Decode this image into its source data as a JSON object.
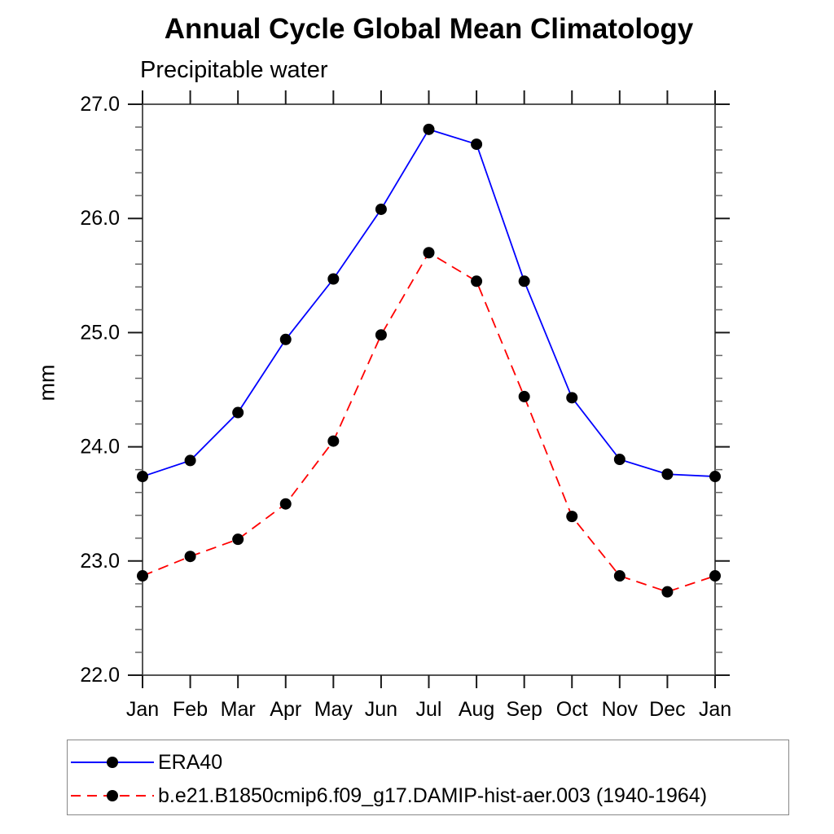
{
  "title": "Annual Cycle Global Mean Climatology",
  "subtitle": "Precipitable water",
  "ylabel": "mm",
  "colors": {
    "series1": "#0000ff",
    "series2": "#ff0000",
    "marker": "#000000",
    "axis": "#555555",
    "major_tick": "#1a1a1a",
    "minor_tick": "#666666",
    "legend_border": "#888888"
  },
  "legend": {
    "position": "bottom",
    "items": [
      {
        "label": "ERA40",
        "color": "#0000ff",
        "line": "solid",
        "marker": "filled-circle"
      },
      {
        "label": "b.e21.B1850cmip6.f09_g17.DAMIP-hist-aer.003 (1940-1964)",
        "color": "#ff0000",
        "line": "dashed",
        "marker": "filled-circle"
      }
    ]
  },
  "chart_data": {
    "type": "line",
    "title": "Annual Cycle Global Mean Climatology",
    "subtitle": "Precipitable water",
    "xlabel": "",
    "ylabel": "mm",
    "categories": [
      "Jan",
      "Feb",
      "Mar",
      "Apr",
      "May",
      "Jun",
      "Jul",
      "Aug",
      "Sep",
      "Oct",
      "Nov",
      "Dec",
      "Jan"
    ],
    "series": [
      {
        "name": "ERA40",
        "color": "#0000ff",
        "line": "solid",
        "marker": "circle",
        "marker_color": "#000000",
        "values": [
          23.74,
          23.88,
          24.3,
          24.94,
          25.47,
          26.08,
          26.78,
          26.65,
          25.45,
          24.43,
          23.89,
          23.76,
          23.74
        ]
      },
      {
        "name": "b.e21.B1850cmip6.f09_g17.DAMIP-hist-aer.003 (1940-1964)",
        "color": "#ff0000",
        "line": "dashed",
        "marker": "circle",
        "marker_color": "#000000",
        "values": [
          22.87,
          23.04,
          23.19,
          23.5,
          24.05,
          24.98,
          25.7,
          25.45,
          24.44,
          23.39,
          22.87,
          22.73,
          22.87
        ]
      }
    ],
    "ylim": [
      22.0,
      27.0
    ],
    "ytick_major": [
      22.0,
      23.0,
      24.0,
      25.0,
      26.0,
      27.0
    ],
    "ytick_labels": [
      "22.0",
      "23.0",
      "24.0",
      "25.0",
      "26.0",
      "27.0"
    ],
    "ytick_minor_step": 0.2,
    "grid": false,
    "frame": "box",
    "ticks": "outward",
    "legend_position": "bottom"
  }
}
